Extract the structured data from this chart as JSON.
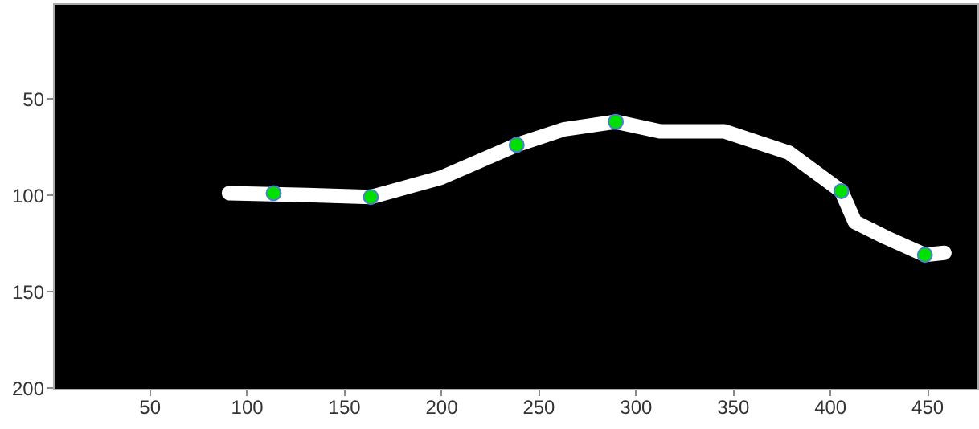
{
  "chart_data": {
    "type": "scatter",
    "xlim": [
      0.5,
      476
    ],
    "ylim": [
      200.5,
      0.5
    ],
    "xticks": [
      50,
      100,
      150,
      200,
      250,
      300,
      350,
      400,
      450
    ],
    "yticks": [
      50,
      100,
      150,
      200
    ],
    "grid": false,
    "series": [
      {
        "type": "line",
        "color": "#ffffff",
        "x": [
          91,
          131,
          164,
          200,
          239,
          263,
          290,
          313,
          346,
          379,
          406,
          413,
          429,
          449,
          459
        ],
        "values": [
          99,
          100,
          101,
          91,
          74,
          66,
          62,
          67,
          67,
          78,
          98,
          114,
          122,
          131,
          130
        ]
      },
      {
        "marker": "circle",
        "color": "#00e000",
        "x": [
          114,
          164,
          239,
          290,
          406,
          449
        ],
        "values": [
          99,
          101,
          74,
          62,
          98,
          131
        ]
      }
    ]
  }
}
